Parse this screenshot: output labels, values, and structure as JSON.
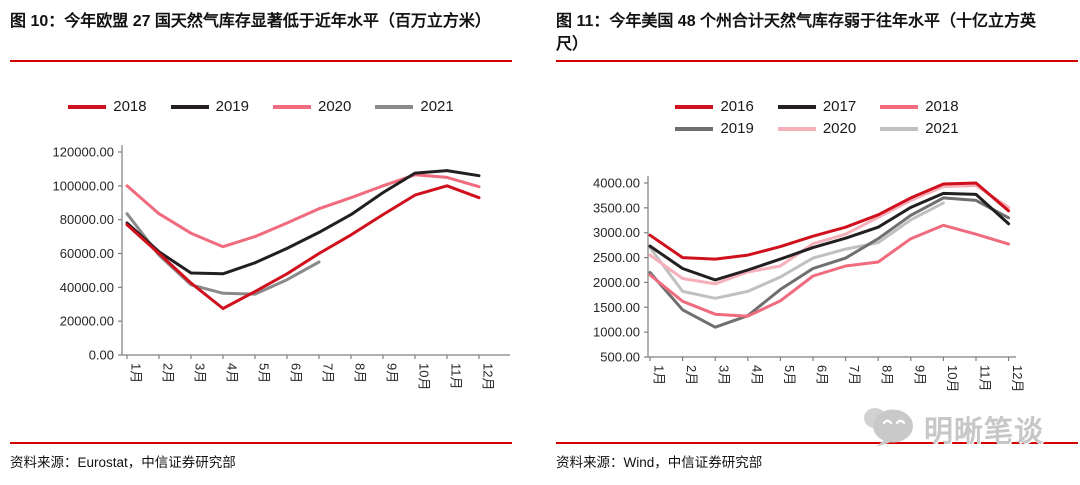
{
  "watermark": {
    "text": "明晰笔谈",
    "icon": "wechat-chat-bubbles",
    "color": "#c7c7c7"
  },
  "accent_red": "#d40000",
  "chart_data": [
    {
      "type": "line",
      "title": "图 10：今年欧盟 27 国天然气库存显著低于近年水平（百万立方米）",
      "source": "资料来源：Eurostat，中信证券研究部",
      "categories": [
        "1月",
        "2月",
        "3月",
        "4月",
        "5月",
        "6月",
        "7月",
        "8月",
        "9月",
        "10月",
        "11月",
        "12月"
      ],
      "xlabel": "",
      "ylabel": "",
      "ylim": [
        0,
        120000
      ],
      "ytick_step": 20000,
      "grid": false,
      "legend_position": "top",
      "legend_columns": 4,
      "series": [
        {
          "name": "2018",
          "color": "#d0111d",
          "values": [
            77000,
            60000,
            42500,
            27500,
            37500,
            48000,
            60000,
            71000,
            83000,
            94500,
            100000,
            93000
          ]
        },
        {
          "name": "2019",
          "color": "#231f20",
          "values": [
            78000,
            61000,
            48500,
            48000,
            54500,
            63000,
            72500,
            83000,
            96000,
            107500,
            109000,
            106000
          ]
        },
        {
          "name": "2020",
          "color": "#ef6b7d",
          "values": [
            100000,
            83500,
            72000,
            64000,
            70000,
            78000,
            86500,
            93000,
            100000,
            106500,
            105000,
            99500
          ]
        },
        {
          "name": "2021",
          "color": "#8a8a8a",
          "values": [
            83500,
            59000,
            41500,
            36500,
            36000,
            44500,
            55000,
            null,
            null,
            null,
            null,
            null
          ]
        }
      ]
    },
    {
      "type": "line",
      "title": "图 11：今年美国 48 个州合计天然气库存弱于往年水平（十亿立方英尺）",
      "source": "资料来源：Wind，中信证券研究部",
      "categories": [
        "1月",
        "2月",
        "3月",
        "4月",
        "5月",
        "6月",
        "7月",
        "8月",
        "9月",
        "10月",
        "11月",
        "12月"
      ],
      "xlabel": "",
      "ylabel": "",
      "ylim": [
        500,
        4000
      ],
      "ytick_step": 500,
      "grid": false,
      "legend_position": "top",
      "legend_columns": 3,
      "series": [
        {
          "name": "2016",
          "color": "#d0111d",
          "values": [
            2950,
            2500,
            2470,
            2550,
            2720,
            2930,
            3110,
            3360,
            3700,
            3980,
            4000,
            3440
          ]
        },
        {
          "name": "2017",
          "color": "#231f20",
          "values": [
            2730,
            2280,
            2050,
            2250,
            2470,
            2700,
            2890,
            3110,
            3510,
            3790,
            3770,
            3180
          ]
        },
        {
          "name": "2018",
          "color": "#ef6b7d",
          "values": [
            2150,
            1620,
            1360,
            1320,
            1630,
            2130,
            2330,
            2410,
            2880,
            3150,
            2970,
            2770
          ]
        },
        {
          "name": "2019",
          "color": "#6f6f6f",
          "values": [
            2200,
            1450,
            1100,
            1330,
            1860,
            2280,
            2490,
            2880,
            3350,
            3700,
            3650,
            3300
          ]
        },
        {
          "name": "2020",
          "color": "#f5b0ba",
          "values": [
            2550,
            2080,
            1970,
            2210,
            2330,
            2780,
            2970,
            3310,
            3650,
            3930,
            3950,
            3510
          ]
        },
        {
          "name": "2021",
          "color": "#c0c0c0",
          "values": [
            2700,
            1820,
            1680,
            1820,
            2110,
            2490,
            2670,
            2800,
            3260,
            3600,
            null,
            null
          ]
        }
      ]
    }
  ]
}
